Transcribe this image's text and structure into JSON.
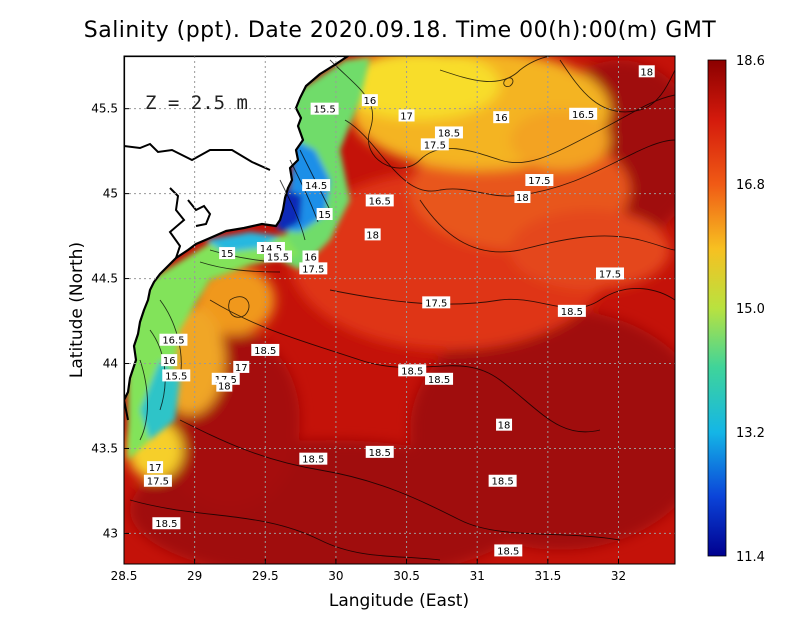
{
  "title": "Salinity (ppt). Date 2020.09.18. Time 00(h):00(m) GMT",
  "depth_label": "Z = 2.5 m",
  "colors": {
    "low": "#00008f",
    "high": "#8b0000",
    "land": "#ffffff",
    "coast": "#000000"
  },
  "chart_data": {
    "type": "heatmap",
    "title": "Salinity (ppt). Date 2020.09.18. Time 00(h):00(m) GMT",
    "xlabel": "Langitude (East)",
    "ylabel": "Latitude (North)",
    "xlim": [
      28.5,
      32.4
    ],
    "ylim": [
      42.82,
      45.81
    ],
    "xticks": [
      28.5,
      29,
      29.5,
      30,
      30.5,
      31,
      31.5,
      32
    ],
    "xtick_labels": [
      "28.5",
      "29",
      "29.5",
      "30",
      "30.5",
      "31",
      "31.5",
      "32"
    ],
    "yticks": [
      43,
      43.5,
      44,
      44.5,
      45,
      45.5
    ],
    "ytick_labels": [
      "43",
      "43.5",
      "44",
      "44.5",
      "45",
      "45.5"
    ],
    "grid": true,
    "colorbar": {
      "min": 11.4,
      "max": 18.6,
      "ticks": [
        18.6,
        16.8,
        15.0,
        13.2,
        11.4
      ],
      "tick_labels": [
        "18.6",
        "16.8",
        "15.0",
        "13.2",
        "11.4"
      ],
      "colormap": "jet"
    },
    "contour_labels": [
      {
        "text": "18",
        "lon": 32.2,
        "lat": 45.72
      },
      {
        "text": "16",
        "lon": 30.24,
        "lat": 45.55
      },
      {
        "text": "15.5",
        "lon": 29.92,
        "lat": 45.5
      },
      {
        "text": "17",
        "lon": 30.5,
        "lat": 45.46
      },
      {
        "text": "16",
        "lon": 31.17,
        "lat": 45.45
      },
      {
        "text": "16.5",
        "lon": 31.75,
        "lat": 45.47
      },
      {
        "text": "18.5",
        "lon": 30.8,
        "lat": 45.36
      },
      {
        "text": "17.5",
        "lon": 30.7,
        "lat": 45.29
      },
      {
        "text": "17.5",
        "lon": 31.44,
        "lat": 45.08
      },
      {
        "text": "18",
        "lon": 31.32,
        "lat": 44.98
      },
      {
        "text": "14.5",
        "lon": 29.86,
        "lat": 45.05
      },
      {
        "text": "16.5",
        "lon": 30.31,
        "lat": 44.96
      },
      {
        "text": "15",
        "lon": 29.92,
        "lat": 44.88
      },
      {
        "text": "18",
        "lon": 30.26,
        "lat": 44.76
      },
      {
        "text": "15",
        "lon": 29.23,
        "lat": 44.65
      },
      {
        "text": "14.5",
        "lon": 29.54,
        "lat": 44.68
      },
      {
        "text": "15.5",
        "lon": 29.59,
        "lat": 44.63
      },
      {
        "text": "16",
        "lon": 29.82,
        "lat": 44.63
      },
      {
        "text": "17.5",
        "lon": 29.84,
        "lat": 44.56
      },
      {
        "text": "17.5",
        "lon": 31.94,
        "lat": 44.53
      },
      {
        "text": "17.5",
        "lon": 30.71,
        "lat": 44.36
      },
      {
        "text": "18.5",
        "lon": 31.67,
        "lat": 44.31
      },
      {
        "text": "16.5",
        "lon": 28.85,
        "lat": 44.14
      },
      {
        "text": "18.5",
        "lon": 29.5,
        "lat": 44.08
      },
      {
        "text": "16",
        "lon": 28.82,
        "lat": 44.02
      },
      {
        "text": "17",
        "lon": 29.33,
        "lat": 43.98
      },
      {
        "text": "18.5",
        "lon": 30.54,
        "lat": 43.96
      },
      {
        "text": "15.5",
        "lon": 28.87,
        "lat": 43.93
      },
      {
        "text": "17.5",
        "lon": 29.22,
        "lat": 43.91
      },
      {
        "text": "18.5",
        "lon": 30.73,
        "lat": 43.91
      },
      {
        "text": "18",
        "lon": 29.21,
        "lat": 43.87
      },
      {
        "text": "18",
        "lon": 31.19,
        "lat": 43.64
      },
      {
        "text": "18.5",
        "lon": 30.31,
        "lat": 43.48
      },
      {
        "text": "18.5",
        "lon": 29.84,
        "lat": 43.44
      },
      {
        "text": "17",
        "lon": 28.72,
        "lat": 43.39
      },
      {
        "text": "17.5",
        "lon": 28.74,
        "lat": 43.31
      },
      {
        "text": "18.5",
        "lon": 31.18,
        "lat": 43.31
      },
      {
        "text": "18.5",
        "lon": 28.8,
        "lat": 43.06
      },
      {
        "text": "18.5",
        "lon": 31.22,
        "lat": 42.9
      }
    ]
  }
}
